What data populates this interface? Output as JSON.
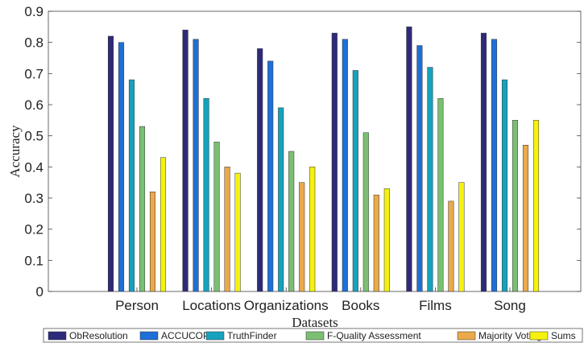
{
  "chart_data": {
    "type": "bar",
    "title": "",
    "xlabel": "Datasets",
    "ylabel": "Accuracy",
    "ylim": [
      0,
      0.9
    ],
    "yticks": [
      0,
      0.1,
      0.2,
      0.3,
      0.4,
      0.5,
      0.6,
      0.7,
      0.8,
      0.9
    ],
    "ytick_labels": [
      "0",
      "0.1",
      "0.2",
      "0.3",
      "0.4",
      "0.5",
      "0.6",
      "0.7",
      "0.8",
      "0.9"
    ],
    "grid": false,
    "legend_position": "bottom",
    "categories": [
      "Person",
      "Locations",
      "Organizations",
      "Books",
      "Films",
      "Song"
    ],
    "series": [
      {
        "name": "ObResolution",
        "color": "#2e2a7a",
        "values": [
          0.82,
          0.84,
          0.78,
          0.83,
          0.85,
          0.83
        ]
      },
      {
        "name": "ACCUCOPY",
        "color": "#1f6fd8",
        "values": [
          0.8,
          0.81,
          0.74,
          0.81,
          0.79,
          0.81
        ]
      },
      {
        "name": "TruthFinder",
        "color": "#16a2bd",
        "values": [
          0.68,
          0.62,
          0.59,
          0.71,
          0.72,
          0.68
        ]
      },
      {
        "name": "F-Quality Assessment",
        "color": "#7bbf72",
        "values": [
          0.53,
          0.48,
          0.45,
          0.51,
          0.62,
          0.55
        ]
      },
      {
        "name": "Majority Voting",
        "color": "#eaa94a",
        "values": [
          0.32,
          0.4,
          0.35,
          0.31,
          0.29,
          0.47
        ]
      },
      {
        "name": "Sums",
        "color": "#f4f20e",
        "values": [
          0.43,
          0.38,
          0.4,
          0.33,
          0.35,
          0.55
        ]
      }
    ]
  }
}
